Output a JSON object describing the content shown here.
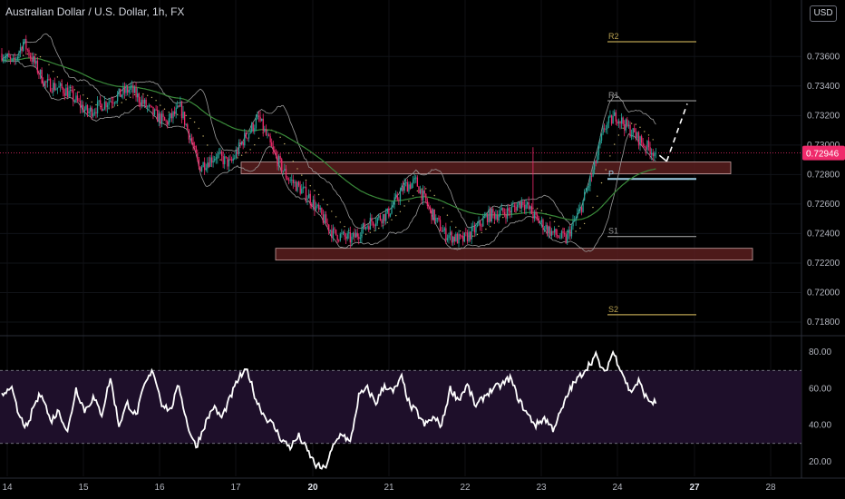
{
  "header": {
    "title": "Australian Dollar / U.S. Dollar, 1h, FX",
    "currency_label": "USD"
  },
  "colors": {
    "background": "#000000",
    "up_candle": "#26a69a",
    "down_candle": "#ef2a6b",
    "bollinger": "#9a9a9a",
    "ema_green": "#3a8a3a",
    "sma_dotted": "#c8b46a",
    "zone_fill": "#5a1f1f",
    "zone_border": "#c8a0a0",
    "pivot_gold": "#b8a050",
    "pivot_grey": "#9a9a9a",
    "pivot_p": "#9ecfe6",
    "rsi_line": "#ffffff",
    "rsi_band": "#1e0f2a",
    "price_tag": "#ef2a6b"
  },
  "price_axis": {
    "labels": [
      "0.73600",
      "0.73400",
      "0.73200",
      "0.73000",
      "0.72800",
      "0.72600",
      "0.72400",
      "0.72200",
      "0.72000",
      "0.71800"
    ],
    "current_price": "0.72946"
  },
  "rsi_axis": {
    "labels": [
      "80.00",
      "60.00",
      "40.00",
      "20.00"
    ]
  },
  "time_axis": {
    "labels": [
      {
        "text": "14",
        "bold": false
      },
      {
        "text": "15",
        "bold": false
      },
      {
        "text": "16",
        "bold": false
      },
      {
        "text": "17",
        "bold": false
      },
      {
        "text": "20",
        "bold": true
      },
      {
        "text": "21",
        "bold": false
      },
      {
        "text": "22",
        "bold": false
      },
      {
        "text": "23",
        "bold": false
      },
      {
        "text": "24",
        "bold": false
      },
      {
        "text": "27",
        "bold": true
      },
      {
        "text": "28",
        "bold": false
      }
    ]
  },
  "pivots": [
    {
      "label": "R2",
      "price": 0.737,
      "color": "gold"
    },
    {
      "label": "R1",
      "price": 0.733,
      "color": "grey"
    },
    {
      "label": "P",
      "price": 0.7277,
      "color": "p"
    },
    {
      "label": "S1",
      "price": 0.7238,
      "color": "grey"
    },
    {
      "label": "S2",
      "price": 0.7185,
      "color": "gold"
    }
  ],
  "chart_data": {
    "type": "candlestick",
    "title": "Australian Dollar / U.S. Dollar, 1h, FX",
    "ylim": [
      0.7172,
      0.7386
    ],
    "y_ticks": [
      0.736,
      0.734,
      0.732,
      0.73,
      0.728,
      0.726,
      0.724,
      0.722,
      0.72,
      0.718
    ],
    "x_ticks": [
      "14",
      "15",
      "16",
      "17",
      "20",
      "21",
      "22",
      "23",
      "24",
      "27",
      "28"
    ],
    "current_price": 0.72946,
    "price_path_keypoints": [
      [
        0,
        0.7362
      ],
      [
        8,
        0.7355
      ],
      [
        15,
        0.737
      ],
      [
        30,
        0.7342
      ],
      [
        45,
        0.7337
      ],
      [
        60,
        0.7322
      ],
      [
        75,
        0.733
      ],
      [
        90,
        0.7338
      ],
      [
        105,
        0.7322
      ],
      [
        115,
        0.7315
      ],
      [
        125,
        0.7325
      ],
      [
        132,
        0.7305
      ],
      [
        138,
        0.7285
      ],
      [
        150,
        0.7293
      ],
      [
        160,
        0.7287
      ],
      [
        170,
        0.7305
      ],
      [
        180,
        0.7318
      ],
      [
        190,
        0.7295
      ],
      [
        200,
        0.7278
      ],
      [
        215,
        0.7265
      ],
      [
        225,
        0.725
      ],
      [
        232,
        0.724
      ],
      [
        245,
        0.7236
      ],
      [
        258,
        0.7248
      ],
      [
        270,
        0.7253
      ],
      [
        282,
        0.7272
      ],
      [
        290,
        0.7275
      ],
      [
        300,
        0.7255
      ],
      [
        310,
        0.724
      ],
      [
        322,
        0.7235
      ],
      [
        332,
        0.7243
      ],
      [
        340,
        0.7252
      ],
      [
        355,
        0.7255
      ],
      [
        365,
        0.7262
      ],
      [
        374,
        0.725
      ],
      [
        386,
        0.724
      ],
      [
        395,
        0.7236
      ],
      [
        405,
        0.7256
      ],
      [
        415,
        0.7285
      ],
      [
        422,
        0.7312
      ],
      [
        430,
        0.732
      ],
      [
        440,
        0.731
      ],
      [
        450,
        0.73
      ],
      [
        458,
        0.72946
      ]
    ],
    "resistance_zone": [
      0.72885,
      0.72805
    ],
    "support_zone": [
      0.723,
      0.7222
    ],
    "projection": [
      [
        0.7291
      ],
      [
        0.7328
      ]
    ],
    "rsi": {
      "overbought": 70,
      "oversold": 30,
      "ylim": [
        12,
        88
      ],
      "keypoints": [
        [
          0,
          56
        ],
        [
          6,
          62
        ],
        [
          12,
          45
        ],
        [
          18,
          38
        ],
        [
          22,
          50
        ],
        [
          28,
          58
        ],
        [
          34,
          42
        ],
        [
          40,
          48
        ],
        [
          46,
          36
        ],
        [
          52,
          60
        ],
        [
          58,
          48
        ],
        [
          64,
          55
        ],
        [
          70,
          46
        ],
        [
          76,
          66
        ],
        [
          82,
          40
        ],
        [
          88,
          52
        ],
        [
          94,
          45
        ],
        [
          100,
          62
        ],
        [
          106,
          70
        ],
        [
          112,
          52
        ],
        [
          118,
          48
        ],
        [
          124,
          62
        ],
        [
          130,
          40
        ],
        [
          136,
          28
        ],
        [
          142,
          40
        ],
        [
          148,
          50
        ],
        [
          154,
          44
        ],
        [
          160,
          55
        ],
        [
          166,
          66
        ],
        [
          172,
          70
        ],
        [
          178,
          54
        ],
        [
          184,
          45
        ],
        [
          190,
          40
        ],
        [
          196,
          32
        ],
        [
          202,
          28
        ],
        [
          208,
          34
        ],
        [
          214,
          26
        ],
        [
          220,
          18
        ],
        [
          226,
          16
        ],
        [
          232,
          28
        ],
        [
          238,
          36
        ],
        [
          244,
          30
        ],
        [
          250,
          56
        ],
        [
          256,
          60
        ],
        [
          262,
          52
        ],
        [
          268,
          62
        ],
        [
          274,
          58
        ],
        [
          280,
          66
        ],
        [
          286,
          50
        ],
        [
          290,
          48
        ],
        [
          296,
          40
        ],
        [
          302,
          44
        ],
        [
          308,
          40
        ],
        [
          314,
          60
        ],
        [
          320,
          54
        ],
        [
          326,
          62
        ],
        [
          332,
          50
        ],
        [
          338,
          56
        ],
        [
          344,
          60
        ],
        [
          350,
          62
        ],
        [
          356,
          66
        ],
        [
          362,
          54
        ],
        [
          368,
          46
        ],
        [
          374,
          40
        ],
        [
          380,
          44
        ],
        [
          386,
          38
        ],
        [
          392,
          48
        ],
        [
          398,
          60
        ],
        [
          404,
          66
        ],
        [
          410,
          72
        ],
        [
          416,
          78
        ],
        [
          422,
          68
        ],
        [
          428,
          80
        ],
        [
          434,
          70
        ],
        [
          440,
          58
        ],
        [
          446,
          64
        ],
        [
          452,
          54
        ],
        [
          458,
          52
        ]
      ]
    }
  }
}
